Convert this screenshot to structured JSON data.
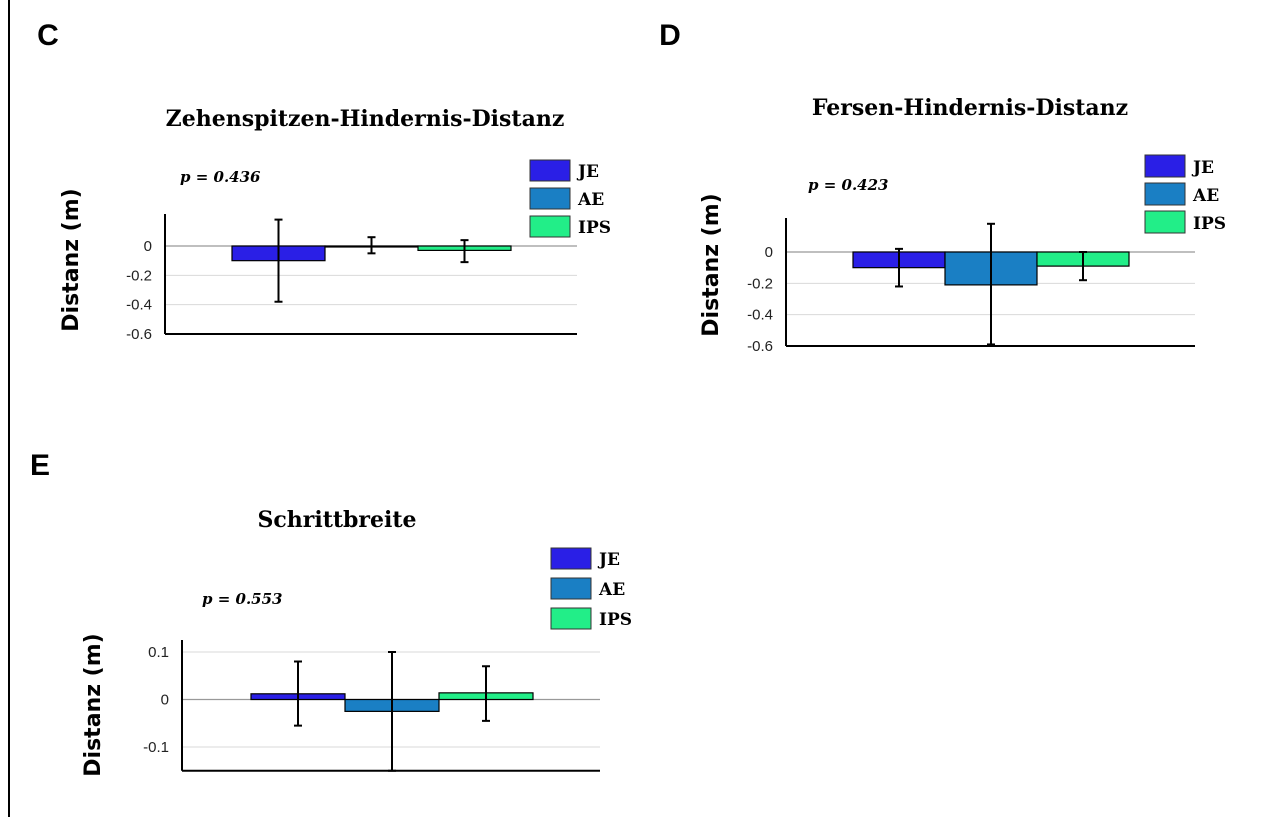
{
  "chart_data": [
    {
      "panel": "C",
      "type": "bar",
      "title": "Zehenspitzen-Hindernis-Distanz",
      "annotation": "p = 0.436",
      "ylabel": "Distanz (m)",
      "xlabel": "",
      "ylim": [
        -0.6,
        0.2
      ],
      "yticks": [
        0,
        -0.2,
        -0.4,
        -0.6
      ],
      "ytick_labels": [
        "0",
        "-0.2",
        "-0.4",
        "-0.6"
      ],
      "grid": true,
      "legend_position": "top-right",
      "categories": [
        "JE",
        "AE",
        "IPS"
      ],
      "values": [
        -0.1,
        0.0,
        -0.03
      ],
      "error_low": [
        -0.38,
        -0.05,
        -0.11
      ],
      "error_high": [
        0.18,
        0.06,
        0.04
      ]
    },
    {
      "panel": "D",
      "type": "bar",
      "title": "Fersen-Hindernis-Distanz",
      "annotation": "p = 0.423",
      "ylabel": "Distanz (m)",
      "xlabel": "",
      "ylim": [
        -0.6,
        0.2
      ],
      "yticks": [
        0,
        -0.2,
        -0.4,
        -0.6
      ],
      "ytick_labels": [
        "0",
        "-0.2",
        "-0.4",
        "-0.6"
      ],
      "grid": true,
      "legend_position": "top-right",
      "categories": [
        "JE",
        "AE",
        "IPS"
      ],
      "values": [
        -0.1,
        -0.21,
        -0.09
      ],
      "error_low": [
        -0.22,
        -0.59,
        -0.18
      ],
      "error_high": [
        0.02,
        0.18,
        0.0
      ]
    },
    {
      "panel": "E",
      "type": "bar",
      "title": "Schrittbreite",
      "annotation": "p = 0.553",
      "ylabel": "Distanz (m)",
      "xlabel": "",
      "ylim": [
        -0.15,
        0.12
      ],
      "yticks": [
        0.1,
        0,
        -0.1
      ],
      "ytick_labels": [
        "0.1",
        "0",
        "-0.1"
      ],
      "grid": true,
      "legend_position": "top-right",
      "categories": [
        "JE",
        "AE",
        "IPS"
      ],
      "values": [
        0.012,
        -0.025,
        0.014
      ],
      "error_low": [
        -0.055,
        -0.15,
        -0.045
      ],
      "error_high": [
        0.08,
        0.1,
        0.07
      ]
    }
  ],
  "legend": {
    "items": [
      {
        "label": "JE",
        "color": "#2a1fe6"
      },
      {
        "label": "AE",
        "color": "#1a7fc4"
      },
      {
        "label": "IPS",
        "color": "#22ee88"
      }
    ]
  },
  "colors": {
    "JE": "#2a1fe6",
    "AE": "#1a7fc4",
    "IPS": "#22ee88",
    "grid": "#d9d9d9",
    "axis": "#000000",
    "zero_line": "#999999"
  }
}
